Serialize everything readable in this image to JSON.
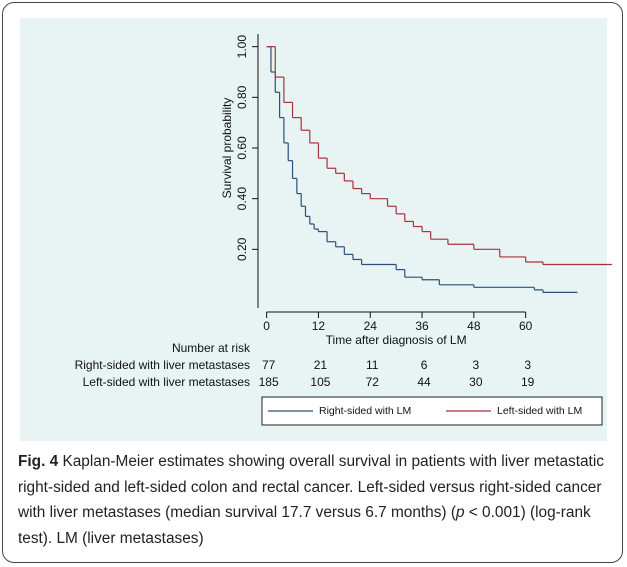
{
  "chart_data": {
    "type": "step",
    "y_axis_title": "Survival probability",
    "x_axis_title": "Time after diagnosis of LM",
    "xlim": [
      -2,
      80
    ],
    "xticks": [
      0,
      12,
      24,
      36,
      48,
      60
    ],
    "ylim": [
      0,
      1.05
    ],
    "yticks": [
      {
        "value": 0.2,
        "label": "0.20"
      },
      {
        "value": 0.4,
        "label": "0.40"
      },
      {
        "value": 0.6,
        "label": "0.60"
      },
      {
        "value": 0.8,
        "label": "0.80"
      },
      {
        "value": 1.0,
        "label": "1.00"
      }
    ],
    "series": [
      {
        "name": "Right-sided with LM",
        "color": "#2c4f7c",
        "x": [
          0,
          1,
          2,
          3,
          4,
          5,
          6,
          7,
          8,
          9,
          10,
          11,
          12,
          14,
          16,
          18,
          20,
          22,
          30,
          32,
          36,
          40,
          48,
          62,
          64,
          72
        ],
        "values": [
          1.0,
          0.9,
          0.82,
          0.72,
          0.62,
          0.55,
          0.48,
          0.42,
          0.37,
          0.33,
          0.3,
          0.28,
          0.27,
          0.23,
          0.21,
          0.18,
          0.16,
          0.14,
          0.12,
          0.09,
          0.08,
          0.06,
          0.05,
          0.04,
          0.03,
          0.03
        ]
      },
      {
        "name": "Left-sided with LM",
        "color": "#a8323a",
        "x": [
          0,
          2,
          4,
          6,
          8,
          10,
          12,
          14,
          16,
          18,
          20,
          22,
          24,
          28,
          30,
          32,
          34,
          36,
          38,
          42,
          48,
          54,
          60,
          64,
          80
        ],
        "values": [
          1.0,
          0.88,
          0.78,
          0.72,
          0.67,
          0.62,
          0.56,
          0.52,
          0.5,
          0.47,
          0.44,
          0.42,
          0.4,
          0.37,
          0.34,
          0.31,
          0.29,
          0.27,
          0.24,
          0.22,
          0.2,
          0.17,
          0.15,
          0.14,
          0.14
        ]
      }
    ],
    "risk_table": {
      "title": "Number at risk",
      "rows": [
        {
          "label": "Right-sided with liver metastases",
          "values": [
            77,
            21,
            11,
            6,
            3,
            3
          ]
        },
        {
          "label": "Left-sided with liver metastases",
          "values": [
            185,
            105,
            72,
            44,
            30,
            19
          ]
        }
      ]
    },
    "caption": {
      "label": "Fig. 4",
      "text_before": " Kaplan-Meier estimates showing overall survival in patients with liver metastatic right-sided and left-sided colon and rectal cancer. Left-sided versus right-sided cancer with liver metastases (median survival 17.7 versus 6.7 months) (",
      "italic": "p",
      "text_after": " < 0.001) (log-rank test). LM (liver metastases)"
    }
  }
}
